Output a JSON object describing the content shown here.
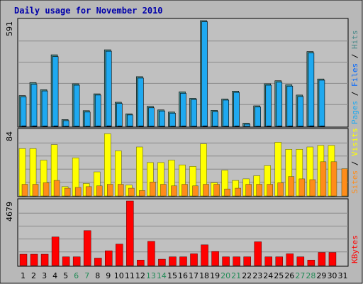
{
  "chart_data": {
    "title": "Daily usage for November 2010",
    "type": "bar",
    "colors": {
      "frame_bg": "#b8b8b8",
      "plot_bg": "#c0c0c0",
      "grid": "#8a8a8a",
      "pages": "#0066ff",
      "files": "#1fa9f0",
      "hits": "#4a8a8a",
      "visits": "#ffff00",
      "sites": "#ff8c1a",
      "kbytes": "#ff0000",
      "weekend_tick": "#228b57",
      "weekday_tick": "#000000"
    },
    "categories": [
      "1",
      "2",
      "3",
      "4",
      "5",
      "6",
      "7",
      "8",
      "9",
      "10",
      "11",
      "12",
      "13",
      "14",
      "15",
      "16",
      "17",
      "18",
      "19",
      "20",
      "21",
      "22",
      "23",
      "24",
      "25",
      "26",
      "27",
      "28",
      "29",
      "30",
      "31"
    ],
    "weekend_days": [
      "6",
      "7",
      "13",
      "14",
      "20",
      "21",
      "27",
      "28"
    ],
    "panels": [
      {
        "ymax_label": "591",
        "ymax": 591,
        "side_label": [
          {
            "text": "Pages",
            "color": "#1fa9f0"
          },
          {
            "text": " / ",
            "color": "#000000"
          },
          {
            "text": "Files",
            "color": "#0066ff"
          },
          {
            "text": " / ",
            "color": "#000000"
          },
          {
            "text": "Hits",
            "color": "#4a8a8a"
          }
        ],
        "series": [
          {
            "name": "Hits",
            "color": "#4a8a8a",
            "values": [
              172,
              245,
              205,
              400,
              38,
              238,
              88,
              182,
              428,
              135,
              70,
              278,
              112,
              92,
              80,
              193,
              157,
              591,
              90,
              153,
              197,
              18,
              115,
              238,
              255,
              233,
              175,
              418,
              265,
              0,
              0
            ]
          },
          {
            "name": "Files",
            "color": "#1fa9f0",
            "values": [
              165,
              235,
              198,
              390,
              32,
              230,
              80,
              175,
              420,
              128,
              64,
              270,
              104,
              86,
              74,
              185,
              150,
              585,
              82,
              147,
              190,
              12,
              108,
              230,
              247,
              225,
              167,
              410,
              258,
              0,
              0
            ]
          },
          {
            "name": "Pages",
            "color": "#0066ff",
            "values": [
              3,
              3,
              2,
              3,
              1,
              1,
              1,
              2,
              3,
              2,
              1,
              2,
              1,
              1,
              1,
              2,
              1,
              3,
              1,
              1,
              2,
              0,
              1,
              2,
              2,
              2,
              1,
              3,
              2,
              0,
              0
            ]
          }
        ]
      },
      {
        "ymax_label": "84",
        "ymax": 84,
        "side_label": [
          {
            "text": "Sites",
            "color": "#ff8c1a"
          },
          {
            "text": " / ",
            "color": "#000000"
          },
          {
            "text": "Visits",
            "color": "#ffff00"
          }
        ],
        "series": [
          {
            "name": "Visits",
            "color": "#ffff00",
            "values": [
              61,
              61,
              46,
              66,
              12,
              49,
              16,
              31,
              80,
              58,
              14,
              63,
              43,
              43,
              46,
              40,
              38,
              67,
              17,
              33,
              20,
              22,
              26,
              39,
              69,
              60,
              60,
              63,
              65,
              65,
              0
            ]
          },
          {
            "name": "Sites",
            "color": "#ff8c1a",
            "values": [
              15,
              15,
              17,
              20,
              10,
              11,
              12,
              13,
              15,
              15,
              10,
              7,
              18,
              15,
              13,
              15,
              13,
              15,
              15,
              9,
              10,
              15,
              15,
              15,
              17,
              25,
              22,
              21,
              44,
              44,
              35
            ]
          }
        ]
      },
      {
        "ymax_label": "4679",
        "ymax": 4679,
        "side_label": [
          {
            "text": "KBytes",
            "color": "#ff0000"
          }
        ],
        "series": [
          {
            "name": "KBytes",
            "color": "#ff0000",
            "values": [
              820,
              820,
              820,
              2070,
              630,
              630,
              2530,
              540,
              1070,
              1550,
              4679,
              400,
              1750,
              460,
              630,
              630,
              850,
              1500,
              1020,
              630,
              630,
              630,
              1720,
              630,
              630,
              850,
              630,
              400,
              950,
              950,
              0
            ]
          }
        ]
      }
    ]
  }
}
